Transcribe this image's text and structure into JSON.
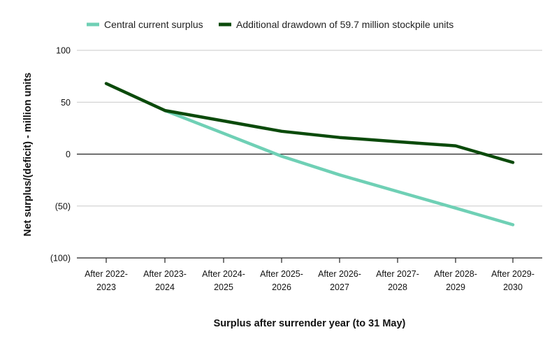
{
  "chart_data": {
    "type": "line",
    "title": "",
    "xlabel": "Surplus after surrender year (to 31 May)",
    "ylabel": "Net surplus/(deficit) - million units",
    "ylim": [
      -100,
      100
    ],
    "yticks": [
      100,
      50,
      0,
      -50,
      -100
    ],
    "ytick_labels": [
      "100",
      "50",
      "0",
      "(50)",
      "(100)"
    ],
    "grid": true,
    "legend": "top-left",
    "categories": [
      [
        "After 2022-",
        "2023"
      ],
      [
        "After 2023-",
        "2024"
      ],
      [
        "After 2024-",
        "2025"
      ],
      [
        "After 2025-",
        "2026"
      ],
      [
        "After 2026-",
        "2027"
      ],
      [
        "After 2027-",
        "2028"
      ],
      [
        "After 2028-",
        "2029"
      ],
      [
        "After 2029-",
        "2030"
      ]
    ],
    "series": [
      {
        "name": "Central current surplus",
        "color": "#6fd0b5",
        "values": [
          null,
          42,
          20,
          -2,
          -20,
          -36,
          -52,
          -68
        ]
      },
      {
        "name": "Additional drawdown of 59.7 million stockpile units",
        "color": "#0b4a0b",
        "values": [
          68,
          42,
          32,
          22,
          16,
          12,
          8,
          -8
        ]
      }
    ]
  }
}
